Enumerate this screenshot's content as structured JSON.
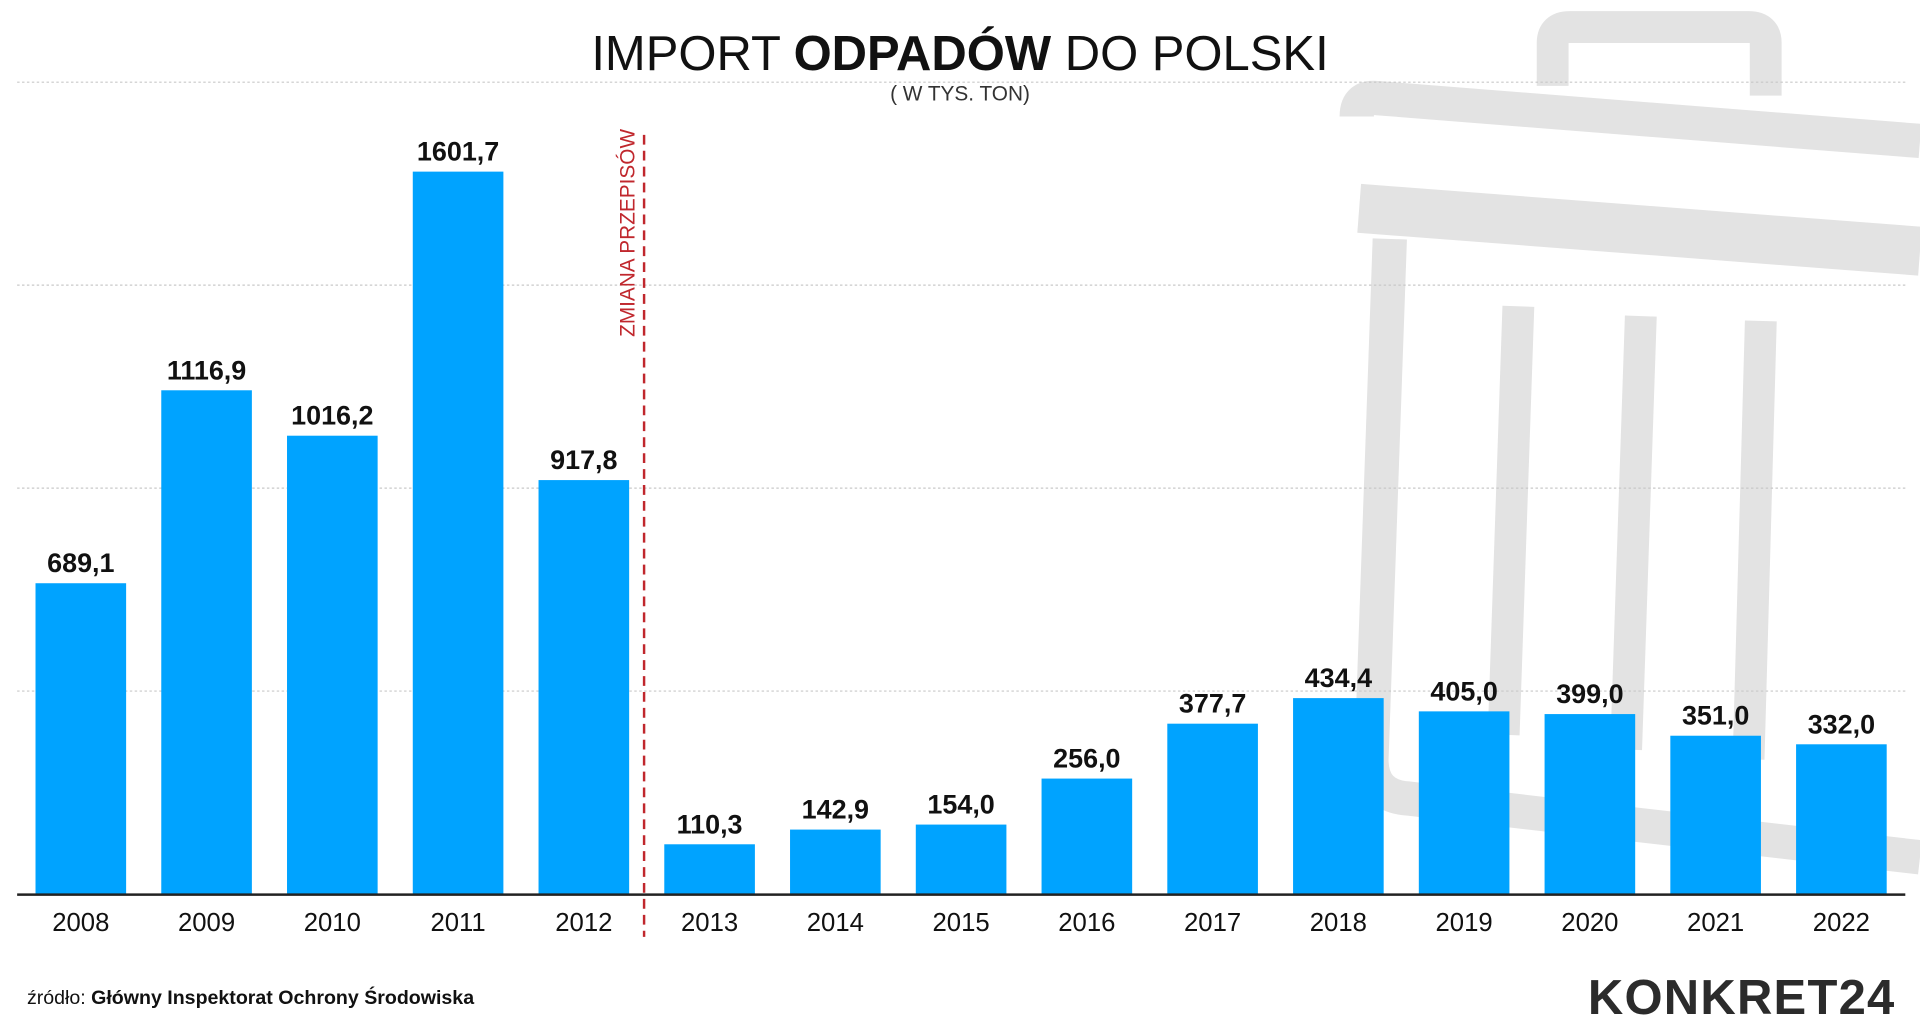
{
  "chart_data": {
    "type": "bar",
    "title_parts": [
      "IMPORT ",
      "ODPADÓW",
      " DO POLSKI"
    ],
    "subtitle": "( W TYS. TON)",
    "categories": [
      "2008",
      "2009",
      "2010",
      "2011",
      "2012",
      "2013",
      "2014",
      "2015",
      "2016",
      "2017",
      "2018",
      "2019",
      "2020",
      "2021",
      "2022"
    ],
    "values": [
      689.1,
      1116.9,
      1016.2,
      1601.7,
      917.8,
      110.3,
      142.9,
      154.0,
      256.0,
      377.7,
      434.4,
      405.0,
      399.0,
      351.0,
      332.0
    ],
    "value_labels": [
      "689,1",
      "1116,9",
      "1016,2",
      "1601,7",
      "917,8",
      "110,3",
      "142,9",
      "154,0",
      "256,0",
      "377,7",
      "434,4",
      "405,0",
      "399,0",
      "351,0",
      "332,0"
    ],
    "ylim": [
      0,
      1800
    ],
    "grid": true,
    "gridlines": [
      450,
      900,
      1350,
      1800
    ],
    "annotation": {
      "label": "ZMIANA PRZEPISÓW",
      "between": [
        "2012",
        "2013"
      ],
      "color": "#c0272d"
    },
    "bar_color": "#00a3ff",
    "xlabel": "",
    "ylabel": ""
  },
  "source": {
    "prefix": "źródło: ",
    "name": "Główny Inspektorat Ochrony Środowiska"
  },
  "logo": {
    "text": "KONKRET24"
  },
  "background_icon": "trash-can-icon"
}
